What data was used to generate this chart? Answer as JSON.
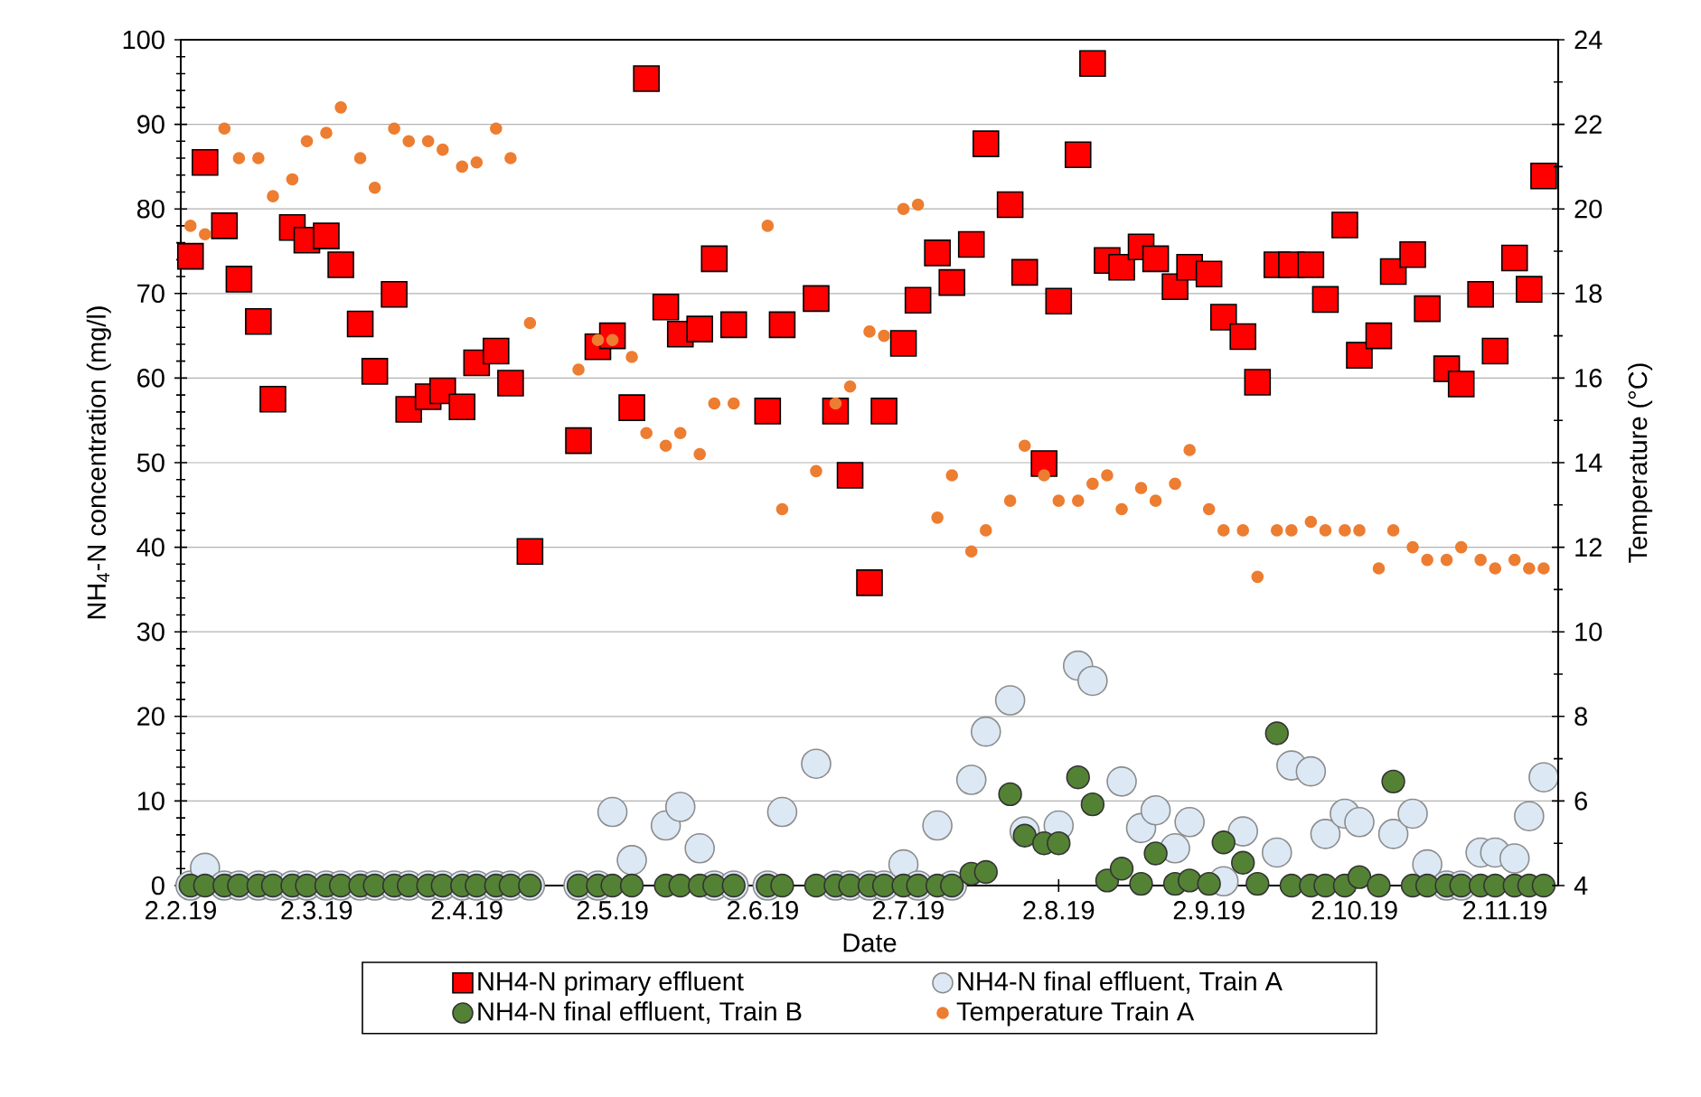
{
  "chart_data": {
    "type": "scatter",
    "xlabel": "Date",
    "ylabel": "NH$_{4}$-N concentration (mg/l)",
    "y2label": "Temperature (°C)",
    "xlim": [
      "2019-02-02",
      "2019-11-13"
    ],
    "xticks": [
      {
        "value": "2019-02-02",
        "label": "2.2.19"
      },
      {
        "value": "2019-03-02",
        "label": "2.3.19"
      },
      {
        "value": "2019-04-02",
        "label": "2.4.19"
      },
      {
        "value": "2019-05-02",
        "label": "2.5.19"
      },
      {
        "value": "2019-06-02",
        "label": "2.6.19"
      },
      {
        "value": "2019-07-02",
        "label": "2.7.19"
      },
      {
        "value": "2019-08-02",
        "label": "2.8.19"
      },
      {
        "value": "2019-09-02",
        "label": "2.9.19"
      },
      {
        "value": "2019-10-02",
        "label": "2.10.19"
      },
      {
        "value": "2019-11-02",
        "label": "2.11.19"
      }
    ],
    "ylim": [
      0,
      100
    ],
    "yticks": [
      0,
      10,
      20,
      30,
      40,
      50,
      60,
      70,
      80,
      90,
      100
    ],
    "y2lim": [
      4,
      24
    ],
    "y2ticks": [
      4,
      6,
      8,
      10,
      12,
      14,
      16,
      18,
      20,
      22,
      24
    ],
    "grid": "y",
    "legend": "bottom",
    "series": [
      {
        "name": "NH4-N primary effluent",
        "color": "#ff0000",
        "marker": "square",
        "x": [
          "2019-02-04",
          "2019-02-07",
          "2019-02-11",
          "2019-02-14",
          "2019-02-18",
          "2019-02-21",
          "2019-02-25",
          "2019-02-28",
          "2019-03-04",
          "2019-03-07",
          "2019-03-11",
          "2019-03-14",
          "2019-03-18",
          "2019-03-21",
          "2019-03-25",
          "2019-03-28",
          "2019-04-01",
          "2019-04-04",
          "2019-04-08",
          "2019-04-11",
          "2019-04-15",
          "2019-04-25",
          "2019-04-29",
          "2019-05-02",
          "2019-05-06",
          "2019-05-09",
          "2019-05-13",
          "2019-05-16",
          "2019-05-20",
          "2019-05-23",
          "2019-05-27",
          "2019-06-03",
          "2019-06-06",
          "2019-06-13",
          "2019-06-17",
          "2019-06-20",
          "2019-06-24",
          "2019-06-27",
          "2019-07-01",
          "2019-07-04",
          "2019-07-08",
          "2019-07-11",
          "2019-07-15",
          "2019-07-18",
          "2019-07-23",
          "2019-07-26",
          "2019-07-30",
          "2019-08-02",
          "2019-08-06",
          "2019-08-09",
          "2019-08-12",
          "2019-08-15",
          "2019-08-19",
          "2019-08-22",
          "2019-08-26",
          "2019-08-29",
          "2019-09-02",
          "2019-09-05",
          "2019-09-09",
          "2019-09-12",
          "2019-09-16",
          "2019-09-19",
          "2019-09-23",
          "2019-09-26",
          "2019-09-30",
          "2019-10-03",
          "2019-10-07",
          "2019-10-10",
          "2019-10-14",
          "2019-10-17",
          "2019-10-21",
          "2019-10-24",
          "2019-10-28",
          "2019-10-31",
          "2019-11-04",
          "2019-11-07",
          "2019-11-10"
        ],
        "values": [
          74.4,
          85.5,
          78.0,
          71.7,
          66.7,
          57.5,
          77.8,
          76.3,
          76.8,
          73.4,
          66.4,
          60.8,
          69.9,
          56.3,
          57.8,
          58.5,
          56.6,
          61.8,
          63.2,
          59.4,
          39.5,
          52.6,
          63.7,
          65.0,
          56.5,
          95.4,
          68.4,
          65.2,
          65.8,
          74.1,
          66.3,
          56.1,
          66.3,
          69.4,
          56.1,
          48.5,
          35.8,
          56.1,
          64.1,
          69.2,
          74.8,
          71.3,
          75.8,
          87.7,
          80.5,
          72.5,
          49.9,
          69.1,
          86.4,
          97.2,
          73.9,
          73.1,
          75.5,
          74.1,
          70.8,
          73.1,
          72.3,
          67.2,
          64.9,
          59.5,
          73.4,
          73.4,
          73.4,
          69.3,
          78.1,
          62.7,
          65.0,
          72.6,
          74.6,
          68.2,
          61.1,
          59.3,
          69.9,
          63.2,
          74.2,
          70.5,
          83.9
        ]
      },
      {
        "name": "NH4-N final effluent, Train A",
        "color": "#dce9f5",
        "marker": "circle",
        "x": [
          "2019-02-04",
          "2019-02-07",
          "2019-02-11",
          "2019-02-14",
          "2019-02-18",
          "2019-02-21",
          "2019-02-25",
          "2019-02-28",
          "2019-03-04",
          "2019-03-07",
          "2019-03-11",
          "2019-03-14",
          "2019-03-18",
          "2019-03-21",
          "2019-03-25",
          "2019-03-28",
          "2019-04-01",
          "2019-04-04",
          "2019-04-08",
          "2019-04-11",
          "2019-04-15",
          "2019-04-25",
          "2019-04-29",
          "2019-05-02",
          "2019-05-06",
          "2019-05-13",
          "2019-05-16",
          "2019-05-20",
          "2019-05-23",
          "2019-05-27",
          "2019-06-03",
          "2019-06-06",
          "2019-06-13",
          "2019-06-17",
          "2019-06-20",
          "2019-06-24",
          "2019-06-27",
          "2019-07-01",
          "2019-07-04",
          "2019-07-08",
          "2019-07-11",
          "2019-07-15",
          "2019-07-18",
          "2019-07-23",
          "2019-07-26",
          "2019-08-02",
          "2019-08-06",
          "2019-08-09",
          "2019-08-12",
          "2019-08-15",
          "2019-08-19",
          "2019-08-22",
          "2019-08-26",
          "2019-08-29",
          "2019-09-05",
          "2019-09-09",
          "2019-09-16",
          "2019-09-19",
          "2019-09-23",
          "2019-09-26",
          "2019-09-30",
          "2019-10-03",
          "2019-10-10",
          "2019-10-14",
          "2019-10-17",
          "2019-10-21",
          "2019-10-24",
          "2019-10-28",
          "2019-10-31",
          "2019-11-04",
          "2019-11-07",
          "2019-11-10"
        ],
        "values": [
          0,
          2.1,
          0,
          0,
          0,
          0,
          0,
          0,
          0,
          0,
          0,
          0,
          0,
          0,
          0,
          0,
          0,
          0,
          0,
          0,
          0,
          0,
          0,
          8.7,
          3.0,
          7.1,
          9.3,
          4.4,
          0,
          0,
          0,
          8.7,
          14.4,
          0,
          0,
          0,
          0,
          2.5,
          0,
          7.1,
          0,
          12.5,
          18.2,
          21.9,
          6.4,
          7.1,
          26.0,
          24.2,
          null,
          12.3,
          6.8,
          8.9,
          4.4,
          7.5,
          0.5,
          6.4,
          3.9,
          14.2,
          13.5,
          6.1,
          8.5,
          7.5,
          6.1,
          8.5,
          2.5,
          0,
          0,
          3.9,
          3.9,
          3.2,
          8.2,
          12.8
        ]
      },
      {
        "name": "NH4-N final effluent, Train B",
        "color": "#548235",
        "marker": "circle",
        "x": [
          "2019-02-04",
          "2019-02-07",
          "2019-02-11",
          "2019-02-14",
          "2019-02-18",
          "2019-02-21",
          "2019-02-25",
          "2019-02-28",
          "2019-03-04",
          "2019-03-07",
          "2019-03-11",
          "2019-03-14",
          "2019-03-18",
          "2019-03-21",
          "2019-03-25",
          "2019-03-28",
          "2019-04-01",
          "2019-04-04",
          "2019-04-08",
          "2019-04-11",
          "2019-04-15",
          "2019-04-25",
          "2019-04-29",
          "2019-05-02",
          "2019-05-06",
          "2019-05-13",
          "2019-05-16",
          "2019-05-20",
          "2019-05-23",
          "2019-05-27",
          "2019-06-03",
          "2019-06-06",
          "2019-06-13",
          "2019-06-17",
          "2019-06-20",
          "2019-06-24",
          "2019-06-27",
          "2019-07-01",
          "2019-07-04",
          "2019-07-08",
          "2019-07-11",
          "2019-07-15",
          "2019-07-18",
          "2019-07-23",
          "2019-07-26",
          "2019-07-30",
          "2019-08-02",
          "2019-08-06",
          "2019-08-09",
          "2019-08-12",
          "2019-08-15",
          "2019-08-19",
          "2019-08-22",
          "2019-08-26",
          "2019-08-29",
          "2019-09-02",
          "2019-09-05",
          "2019-09-09",
          "2019-09-12",
          "2019-09-16",
          "2019-09-19",
          "2019-09-23",
          "2019-09-26",
          "2019-09-30",
          "2019-10-03",
          "2019-10-07",
          "2019-10-10",
          "2019-10-14",
          "2019-10-17",
          "2019-10-21",
          "2019-10-24",
          "2019-10-28",
          "2019-10-31",
          "2019-11-04",
          "2019-11-07",
          "2019-11-10"
        ],
        "values": [
          0,
          0,
          0,
          0,
          0,
          0,
          0,
          0,
          0,
          0,
          0,
          0,
          0,
          0,
          0,
          0,
          0,
          0,
          0,
          0,
          0,
          0,
          0,
          0,
          0,
          0,
          0,
          0,
          0,
          0,
          0,
          0,
          0,
          0,
          0,
          0,
          0,
          0,
          0,
          0,
          0,
          1.4,
          1.6,
          10.8,
          5.9,
          5.0,
          5.0,
          12.8,
          9.6,
          0.6,
          2.0,
          0.2,
          3.8,
          0.2,
          0.6,
          0.2,
          5.1,
          2.7,
          0.2,
          18.0,
          0,
          0,
          0,
          0,
          1.0,
          0,
          12.3,
          0,
          0,
          0,
          0,
          0,
          0,
          0,
          0,
          0
        ]
      },
      {
        "name": "Temperature Train A",
        "color": "#ed7d31",
        "marker": "circle",
        "axis": "y2",
        "x": [
          "2019-02-04",
          "2019-02-07",
          "2019-02-11",
          "2019-02-14",
          "2019-02-18",
          "2019-02-21",
          "2019-02-25",
          "2019-02-28",
          "2019-03-04",
          "2019-03-07",
          "2019-03-11",
          "2019-03-14",
          "2019-03-18",
          "2019-03-21",
          "2019-03-25",
          "2019-03-28",
          "2019-04-01",
          "2019-04-04",
          "2019-04-08",
          "2019-04-11",
          "2019-04-15",
          "2019-04-25",
          "2019-04-29",
          "2019-05-02",
          "2019-05-06",
          "2019-05-09",
          "2019-05-13",
          "2019-05-16",
          "2019-05-20",
          "2019-05-23",
          "2019-05-27",
          "2019-06-03",
          "2019-06-06",
          "2019-06-13",
          "2019-06-17",
          "2019-06-20",
          "2019-06-24",
          "2019-06-27",
          "2019-07-01",
          "2019-07-04",
          "2019-07-08",
          "2019-07-11",
          "2019-07-15",
          "2019-07-18",
          "2019-07-23",
          "2019-07-26",
          "2019-07-30",
          "2019-08-02",
          "2019-08-06",
          "2019-08-09",
          "2019-08-12",
          "2019-08-15",
          "2019-08-19",
          "2019-08-22",
          "2019-08-26",
          "2019-08-29",
          "2019-09-02",
          "2019-09-05",
          "2019-09-09",
          "2019-09-12",
          "2019-09-16",
          "2019-09-19",
          "2019-09-23",
          "2019-09-26",
          "2019-09-30",
          "2019-10-03",
          "2019-10-07",
          "2019-10-10",
          "2019-10-14",
          "2019-10-17",
          "2019-10-21",
          "2019-10-24",
          "2019-10-28",
          "2019-10-31",
          "2019-11-04",
          "2019-11-07",
          "2019-11-10"
        ],
        "values": [
          19.6,
          19.4,
          21.9,
          21.2,
          21.2,
          20.3,
          20.7,
          21.6,
          21.8,
          22.4,
          21.2,
          20.5,
          21.9,
          21.6,
          21.6,
          21.4,
          21.0,
          21.1,
          21.9,
          21.2,
          17.3,
          16.2,
          16.9,
          16.9,
          16.5,
          14.7,
          14.4,
          14.7,
          14.2,
          15.4,
          15.4,
          19.6,
          12.9,
          13.8,
          15.4,
          15.8,
          17.1,
          17.0,
          20.0,
          20.1,
          12.7,
          13.7,
          11.9,
          12.4,
          13.1,
          14.4,
          13.7,
          13.1,
          13.1,
          13.5,
          13.7,
          12.9,
          13.4,
          13.1,
          13.5,
          14.3,
          12.9,
          12.4,
          12.4,
          11.3,
          12.4,
          12.4,
          12.6,
          12.4,
          12.4,
          12.4,
          11.5,
          12.4,
          12.0,
          11.7,
          11.7,
          12.0,
          11.7,
          11.5,
          11.7,
          11.5,
          11.5
        ]
      }
    ]
  }
}
